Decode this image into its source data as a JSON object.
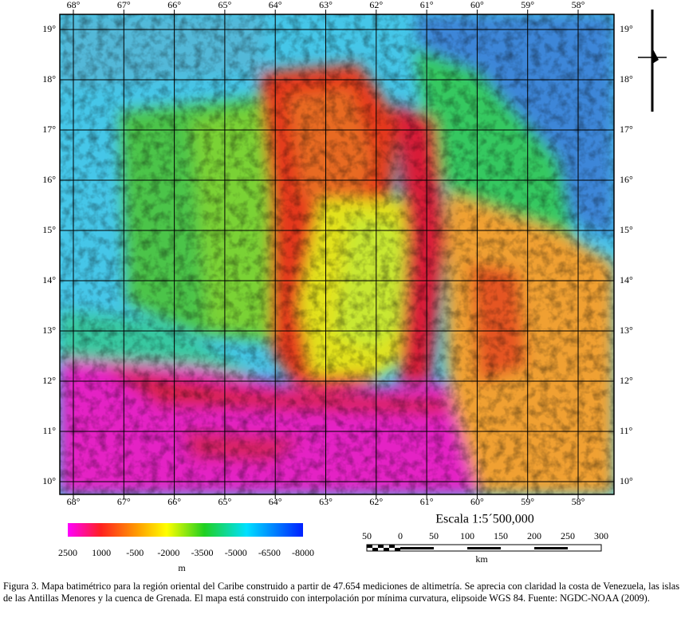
{
  "map": {
    "longitude_labels": [
      "68°",
      "67°",
      "66°",
      "65°",
      "64°",
      "63°",
      "62°",
      "61°",
      "60°",
      "59°",
      "58°"
    ],
    "latitude_labels": [
      "19°",
      "18°",
      "17°",
      "16°",
      "15°",
      "14°",
      "13°",
      "12°",
      "11°",
      "10°"
    ]
  },
  "legend": {
    "tick_labels": [
      "2500",
      "1000",
      "-500",
      "-2000",
      "-3500",
      "-5000",
      "-6500",
      "-8000"
    ],
    "unit": "m"
  },
  "scale": {
    "title": "Escala 1:5´500,000",
    "tick_labels": [
      "50",
      "0",
      "50",
      "100",
      "150",
      "200",
      "250",
      "300"
    ],
    "unit": "km"
  },
  "caption": "Figura 3. Mapa batimétrico para la región oriental del Caribe construido a partir de 47.654 mediciones de altimetría. Se aprecia con claridad la costa de Venezuela, las islas de las Antillas Menores y la cuenca de Grenada. El mapa está construido con interpolación por mínima curvatura, elipsoide WGS 84. Fuente: NGDC-NOAA (2009)."
}
